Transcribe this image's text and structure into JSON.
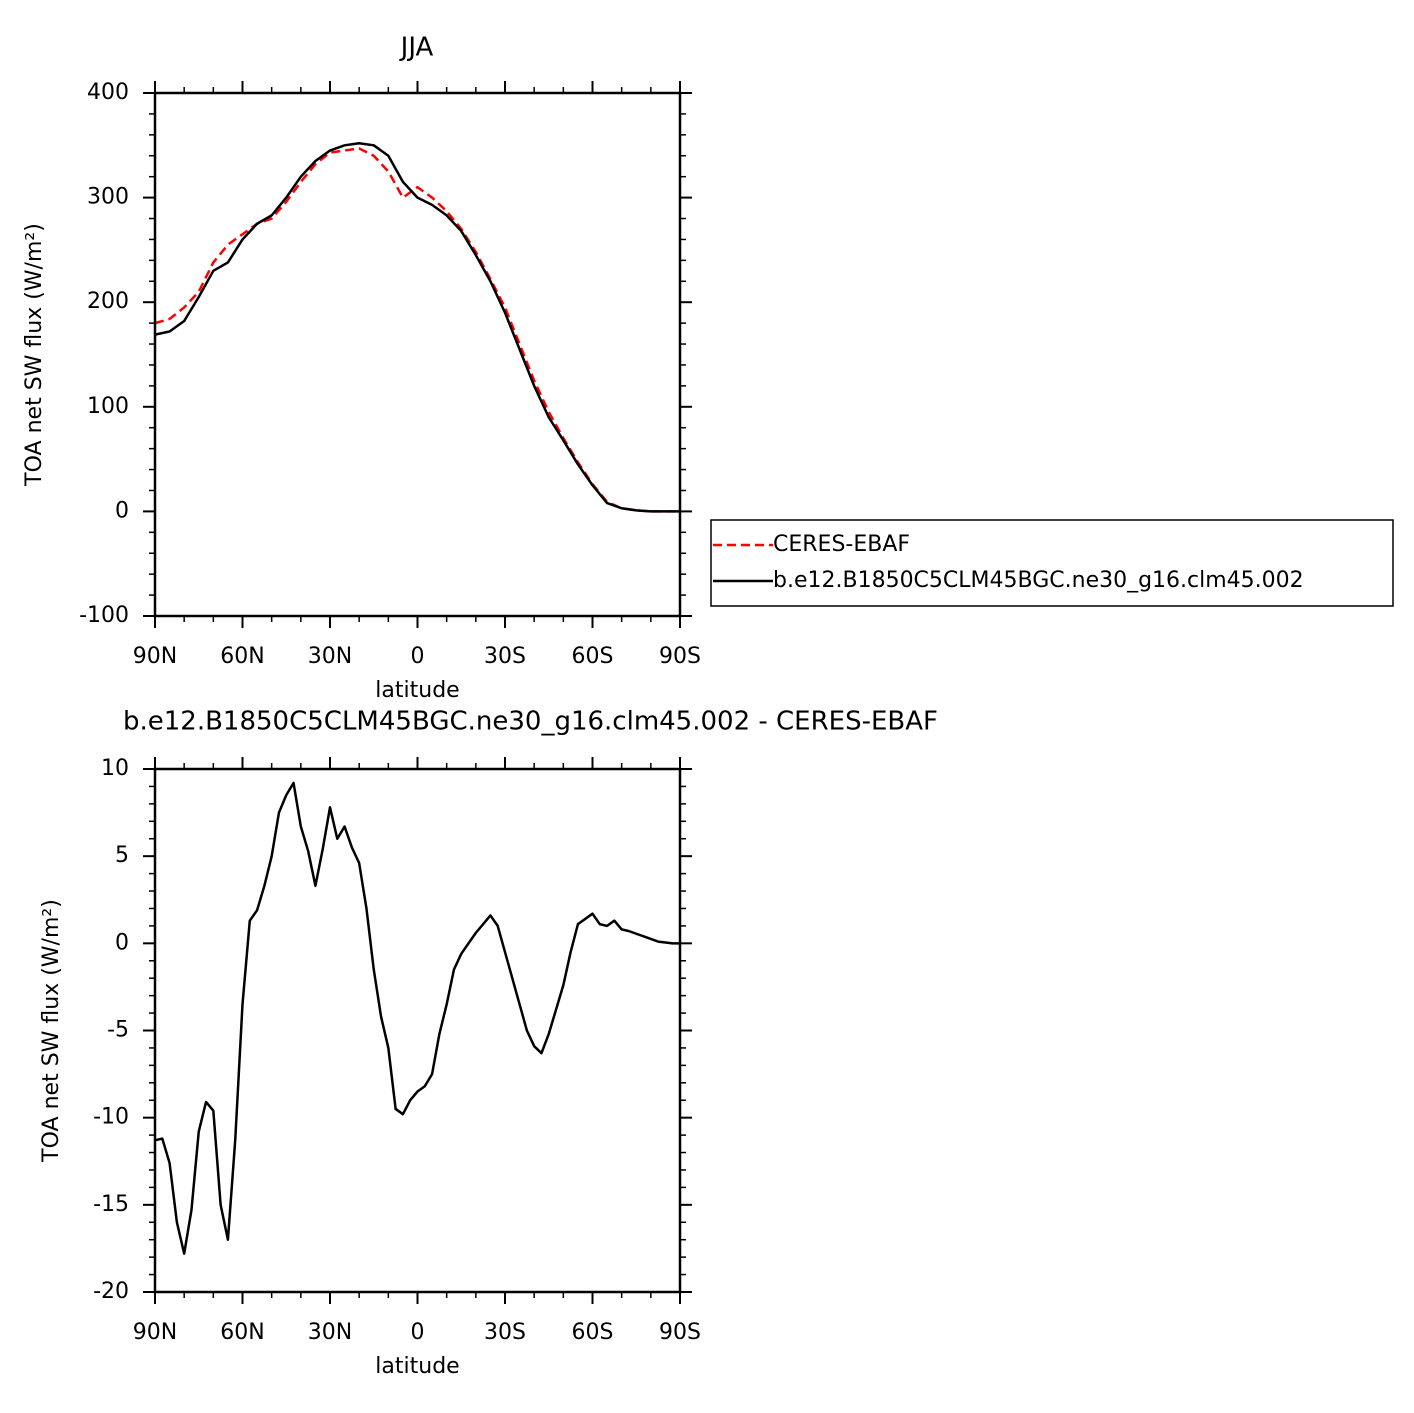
{
  "chart_data": [
    {
      "type": "line",
      "title": "JJA",
      "xlabel": "latitude",
      "ylabel": "TOA net SW flux (W/m²)",
      "x": [
        90,
        85,
        80,
        75,
        70,
        65,
        60,
        55,
        50,
        45,
        40,
        35,
        30,
        25,
        20,
        15,
        10,
        5,
        0,
        -5,
        -10,
        -15,
        -20,
        -25,
        -30,
        -35,
        -40,
        -45,
        -50,
        -55,
        -60,
        -65,
        -70,
        -75,
        -80,
        -85,
        -90
      ],
      "series": [
        {
          "name": "CERES-EBAF",
          "color": "#ff0000",
          "dashed": true,
          "values": [
            180,
            184,
            195,
            210,
            238,
            255,
            265,
            275,
            280,
            296,
            315,
            332,
            343,
            345,
            347,
            340,
            325,
            300,
            310,
            300,
            287,
            270,
            248,
            222,
            195,
            160,
            125,
            95,
            70,
            47,
            26,
            9,
            3,
            1,
            0,
            0,
            0
          ]
        },
        {
          "name": "b.e12.B1850C5CLM45BGC.ne30_g16.clm45.002",
          "color": "#000000",
          "dashed": false,
          "values": [
            169,
            172,
            182,
            205,
            230,
            238,
            260,
            275,
            283,
            300,
            320,
            335,
            345,
            350,
            352,
            350,
            340,
            315,
            300,
            293,
            283,
            268,
            245,
            220,
            190,
            155,
            120,
            90,
            68,
            45,
            25,
            8,
            3,
            1,
            0,
            0,
            0
          ]
        }
      ],
      "xlim": [
        90,
        -90
      ],
      "xticks": [
        {
          "value": 90,
          "label": "90N"
        },
        {
          "value": 60,
          "label": "60N"
        },
        {
          "value": 30,
          "label": "30N"
        },
        0,
        {
          "value": -30,
          "label": "30S"
        },
        {
          "value": -60,
          "label": "60S"
        },
        {
          "value": -90,
          "label": "90S"
        }
      ],
      "ylim": [
        -100,
        400
      ],
      "yticks": [
        -100,
        0,
        100,
        200,
        300,
        400
      ],
      "legend": "right"
    },
    {
      "type": "line",
      "title": "b.e12.B1850C5CLM45BGC.ne30_g16.clm45.002 - CERES-EBAF",
      "xlabel": "latitude",
      "ylabel": "TOA net SW flux (W/m²)",
      "x": [
        90,
        87.5,
        85,
        82.5,
        80,
        77.5,
        75,
        72.5,
        70,
        67.5,
        65,
        62.5,
        60,
        57.5,
        55,
        52.5,
        50,
        47.5,
        45,
        42.5,
        40,
        37.5,
        35,
        32.5,
        30,
        27.5,
        25,
        22.5,
        20,
        17.5,
        15,
        12.5,
        10,
        7.5,
        5,
        2.5,
        0,
        -2.5,
        -5,
        -7.5,
        -10,
        -12.5,
        -15,
        -17.5,
        -20,
        -22.5,
        -25,
        -27.5,
        -30,
        -32.5,
        -35,
        -37.5,
        -40,
        -42.5,
        -45,
        -47.5,
        -50,
        -52.5,
        -55,
        -57.5,
        -60,
        -62.5,
        -65,
        -67.5,
        -70,
        -72.5,
        -75,
        -77.5,
        -80,
        -82.5,
        -85,
        -87.5,
        -90
      ],
      "values": [
        -11.3,
        -11.2,
        -12.6,
        -16,
        -17.8,
        -15.3,
        -10.8,
        -9.1,
        -9.6,
        -15,
        -17,
        -11.3,
        -3.5,
        1.3,
        1.9,
        3.3,
        5,
        7.5,
        8.5,
        9.2,
        6.7,
        5.3,
        3.3,
        5.4,
        7.8,
        6,
        6.7,
        5.5,
        4.6,
        2,
        -1.5,
        -4.2,
        -6,
        -9.5,
        -9.8,
        -9,
        -8.5,
        -8.2,
        -7.5,
        -5.2,
        -3.5,
        -1.5,
        -0.6,
        0,
        0.6,
        1.1,
        1.6,
        1,
        -0.5,
        -2,
        -3.5,
        -5,
        -5.9,
        -6.3,
        -5.2,
        -3.8,
        -2.4,
        -0.5,
        1.1,
        1.4,
        1.7,
        1.1,
        1,
        1.3,
        0.8,
        0.7,
        0.55,
        0.4,
        0.25,
        0.1,
        0.05,
        0,
        0
      ],
      "color": "#000000",
      "xlim": [
        90,
        -90
      ],
      "xticks": [
        {
          "value": 90,
          "label": "90N"
        },
        {
          "value": 60,
          "label": "60N"
        },
        {
          "value": 30,
          "label": "30N"
        },
        0,
        {
          "value": -30,
          "label": "30S"
        },
        {
          "value": -60,
          "label": "60S"
        },
        {
          "value": -90,
          "label": "90S"
        }
      ],
      "ylim": [
        -20,
        10
      ],
      "yticks": [
        -20,
        -15,
        -10,
        -5,
        0,
        5,
        10
      ]
    }
  ]
}
